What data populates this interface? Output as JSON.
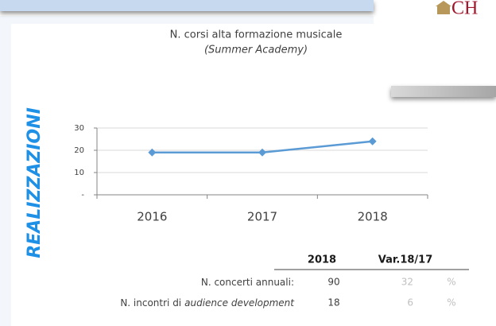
{
  "logo": "CH",
  "side_label": "REALIZZAZIONI",
  "chart_data": {
    "type": "line",
    "title": "N. corsi alta formazione musicale",
    "subtitle": "(Summer Academy)",
    "categories": [
      "2016",
      "2017",
      "2018"
    ],
    "series": [
      {
        "name": "N. corsi alta formazione musicale",
        "color": "#5b9bd5",
        "values": [
          19,
          19,
          24
        ]
      }
    ],
    "ylim": [
      0,
      30
    ],
    "yticks": [
      {
        "value": 0,
        "label": "-"
      },
      10,
      20,
      30
    ],
    "grid": true
  },
  "table": {
    "header": [
      "2018",
      "Var.18/17"
    ],
    "rows": [
      {
        "label": [
          "N. concerti annuali:"
        ],
        "value": 90,
        "var": 32,
        "unit": "%"
      },
      {
        "label": [
          "N. incontri di",
          "audience development"
        ],
        "value": 18,
        "var": 6,
        "unit": "%"
      }
    ]
  }
}
